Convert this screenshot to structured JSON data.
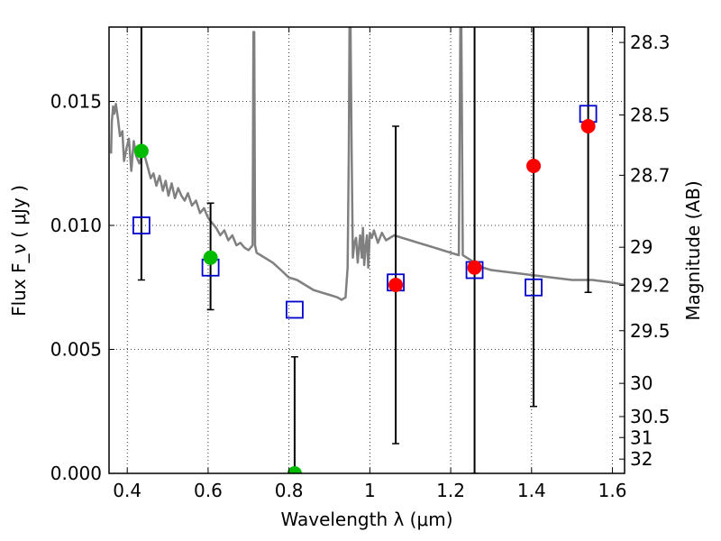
{
  "chart_data": {
    "type": "scatter",
    "xlabel": "Wavelength  λ (μm)",
    "ylabel": "Flux  F_ν  ( μJy )",
    "ylabel_right": "Magnitude (AB)",
    "xlim": [
      0.355,
      1.63
    ],
    "ylim": [
      0.0,
      0.018
    ],
    "grid": true,
    "x_ticks": [
      0.4,
      0.6,
      0.8,
      1.0,
      1.2,
      1.4,
      1.6
    ],
    "x_tick_labels": [
      "0.4",
      "0.6",
      "0.8",
      "1",
      "1.2",
      "1.4",
      "1.6"
    ],
    "y_ticks": [
      0.0,
      0.005,
      0.01,
      0.015
    ],
    "y_tick_labels": [
      "0.000",
      "0.005",
      "0.010",
      "0.015"
    ],
    "mag_ticks": [
      28.3,
      28.5,
      28.7,
      29,
      29.2,
      29.5,
      30,
      30.5,
      31,
      32
    ],
    "mag_tick_labels": [
      "28.3",
      "28.5",
      "28.7",
      "29",
      "29.2",
      "29.5",
      "30",
      "30.5",
      "31",
      "32"
    ],
    "model_sed": {
      "color": "#808080",
      "x": [
        0.36,
        0.362,
        0.365,
        0.368,
        0.372,
        0.377,
        0.382,
        0.388,
        0.392,
        0.398,
        0.404,
        0.41,
        0.416,
        0.422,
        0.43,
        0.44,
        0.45,
        0.458,
        0.465,
        0.472,
        0.48,
        0.488,
        0.495,
        0.502,
        0.51,
        0.518,
        0.526,
        0.534,
        0.542,
        0.55,
        0.56,
        0.57,
        0.58,
        0.59,
        0.6,
        0.61,
        0.62,
        0.63,
        0.64,
        0.65,
        0.66,
        0.67,
        0.68,
        0.69,
        0.7,
        0.71,
        0.712,
        0.714,
        0.716,
        0.72,
        0.73,
        0.74,
        0.76,
        0.78,
        0.8,
        0.82,
        0.84,
        0.86,
        0.88,
        0.9,
        0.92,
        0.93,
        0.94,
        0.945,
        0.948,
        0.95,
        0.952,
        0.955,
        0.958,
        0.962,
        0.966,
        0.97,
        0.973,
        0.976,
        0.98,
        0.983,
        0.986,
        0.99,
        0.993,
        0.996,
        1.0,
        1.005,
        1.01,
        1.02,
        1.03,
        1.04,
        1.06,
        1.08,
        1.1,
        1.12,
        1.14,
        1.16,
        1.18,
        1.2,
        1.22,
        1.224,
        1.226,
        1.23,
        1.24,
        1.26,
        1.28,
        1.3,
        1.35,
        1.4,
        1.45,
        1.5,
        1.55,
        1.6,
        1.63
      ],
      "y": [
        0.0129,
        0.0142,
        0.0148,
        0.0145,
        0.0149,
        0.0143,
        0.0136,
        0.0138,
        0.0126,
        0.0131,
        0.0135,
        0.0122,
        0.0134,
        0.0128,
        0.0125,
        0.013,
        0.0124,
        0.0119,
        0.0121,
        0.0116,
        0.012,
        0.0114,
        0.0118,
        0.0112,
        0.0117,
        0.0111,
        0.0115,
        0.0112,
        0.011,
        0.0113,
        0.0108,
        0.011,
        0.0105,
        0.0107,
        0.0103,
        0.0101,
        0.0099,
        0.0096,
        0.0098,
        0.0094,
        0.0096,
        0.0092,
        0.0093,
        0.0091,
        0.009,
        0.0092,
        0.0178,
        0.0178,
        0.0092,
        0.0089,
        0.0088,
        0.0087,
        0.0085,
        0.0082,
        0.0079,
        0.0078,
        0.0076,
        0.0074,
        0.0073,
        0.0072,
        0.0071,
        0.007,
        0.0071,
        0.0083,
        0.0129,
        0.0185,
        0.0185,
        0.0129,
        0.0087,
        0.0093,
        0.0095,
        0.0085,
        0.0091,
        0.0096,
        0.0087,
        0.0099,
        0.0084,
        0.0092,
        0.0096,
        0.0083,
        0.0097,
        0.0095,
        0.0098,
        0.0093,
        0.0097,
        0.0094,
        0.0096,
        0.0095,
        0.0094,
        0.0093,
        0.0092,
        0.0091,
        0.009,
        0.0089,
        0.0088,
        0.0185,
        0.0185,
        0.0088,
        0.0087,
        0.0085,
        0.0083,
        0.0082,
        0.0081,
        0.008,
        0.0079,
        0.0078,
        0.0078,
        0.0077,
        0.0076
      ]
    },
    "model_photometry": {
      "marker": "open-square",
      "color": "#0000cc",
      "x": [
        0.435,
        0.606,
        0.814,
        1.064,
        1.259,
        1.405,
        1.54
      ],
      "y": [
        0.01,
        0.0083,
        0.0066,
        0.0077,
        0.0082,
        0.0075,
        0.0145
      ]
    },
    "green_points": {
      "color": "#00bb00",
      "x": [
        0.435,
        0.606,
        0.814
      ],
      "y": [
        0.013,
        0.0087,
        0.0
      ],
      "yerr_low": [
        0.0078,
        0.0066,
        0.0
      ],
      "yerr_high": [
        0.0185,
        0.0109,
        0.0047
      ]
    },
    "red_points": {
      "color": "#ff0000",
      "x": [
        1.064,
        1.259,
        1.405,
        1.54
      ],
      "y": [
        0.0076,
        0.0083,
        0.0124,
        0.014
      ],
      "yerr_low": [
        0.0012,
        0.0,
        0.0027,
        0.0073
      ],
      "yerr_high": [
        0.014,
        0.0185,
        0.0185,
        0.0185
      ]
    }
  }
}
